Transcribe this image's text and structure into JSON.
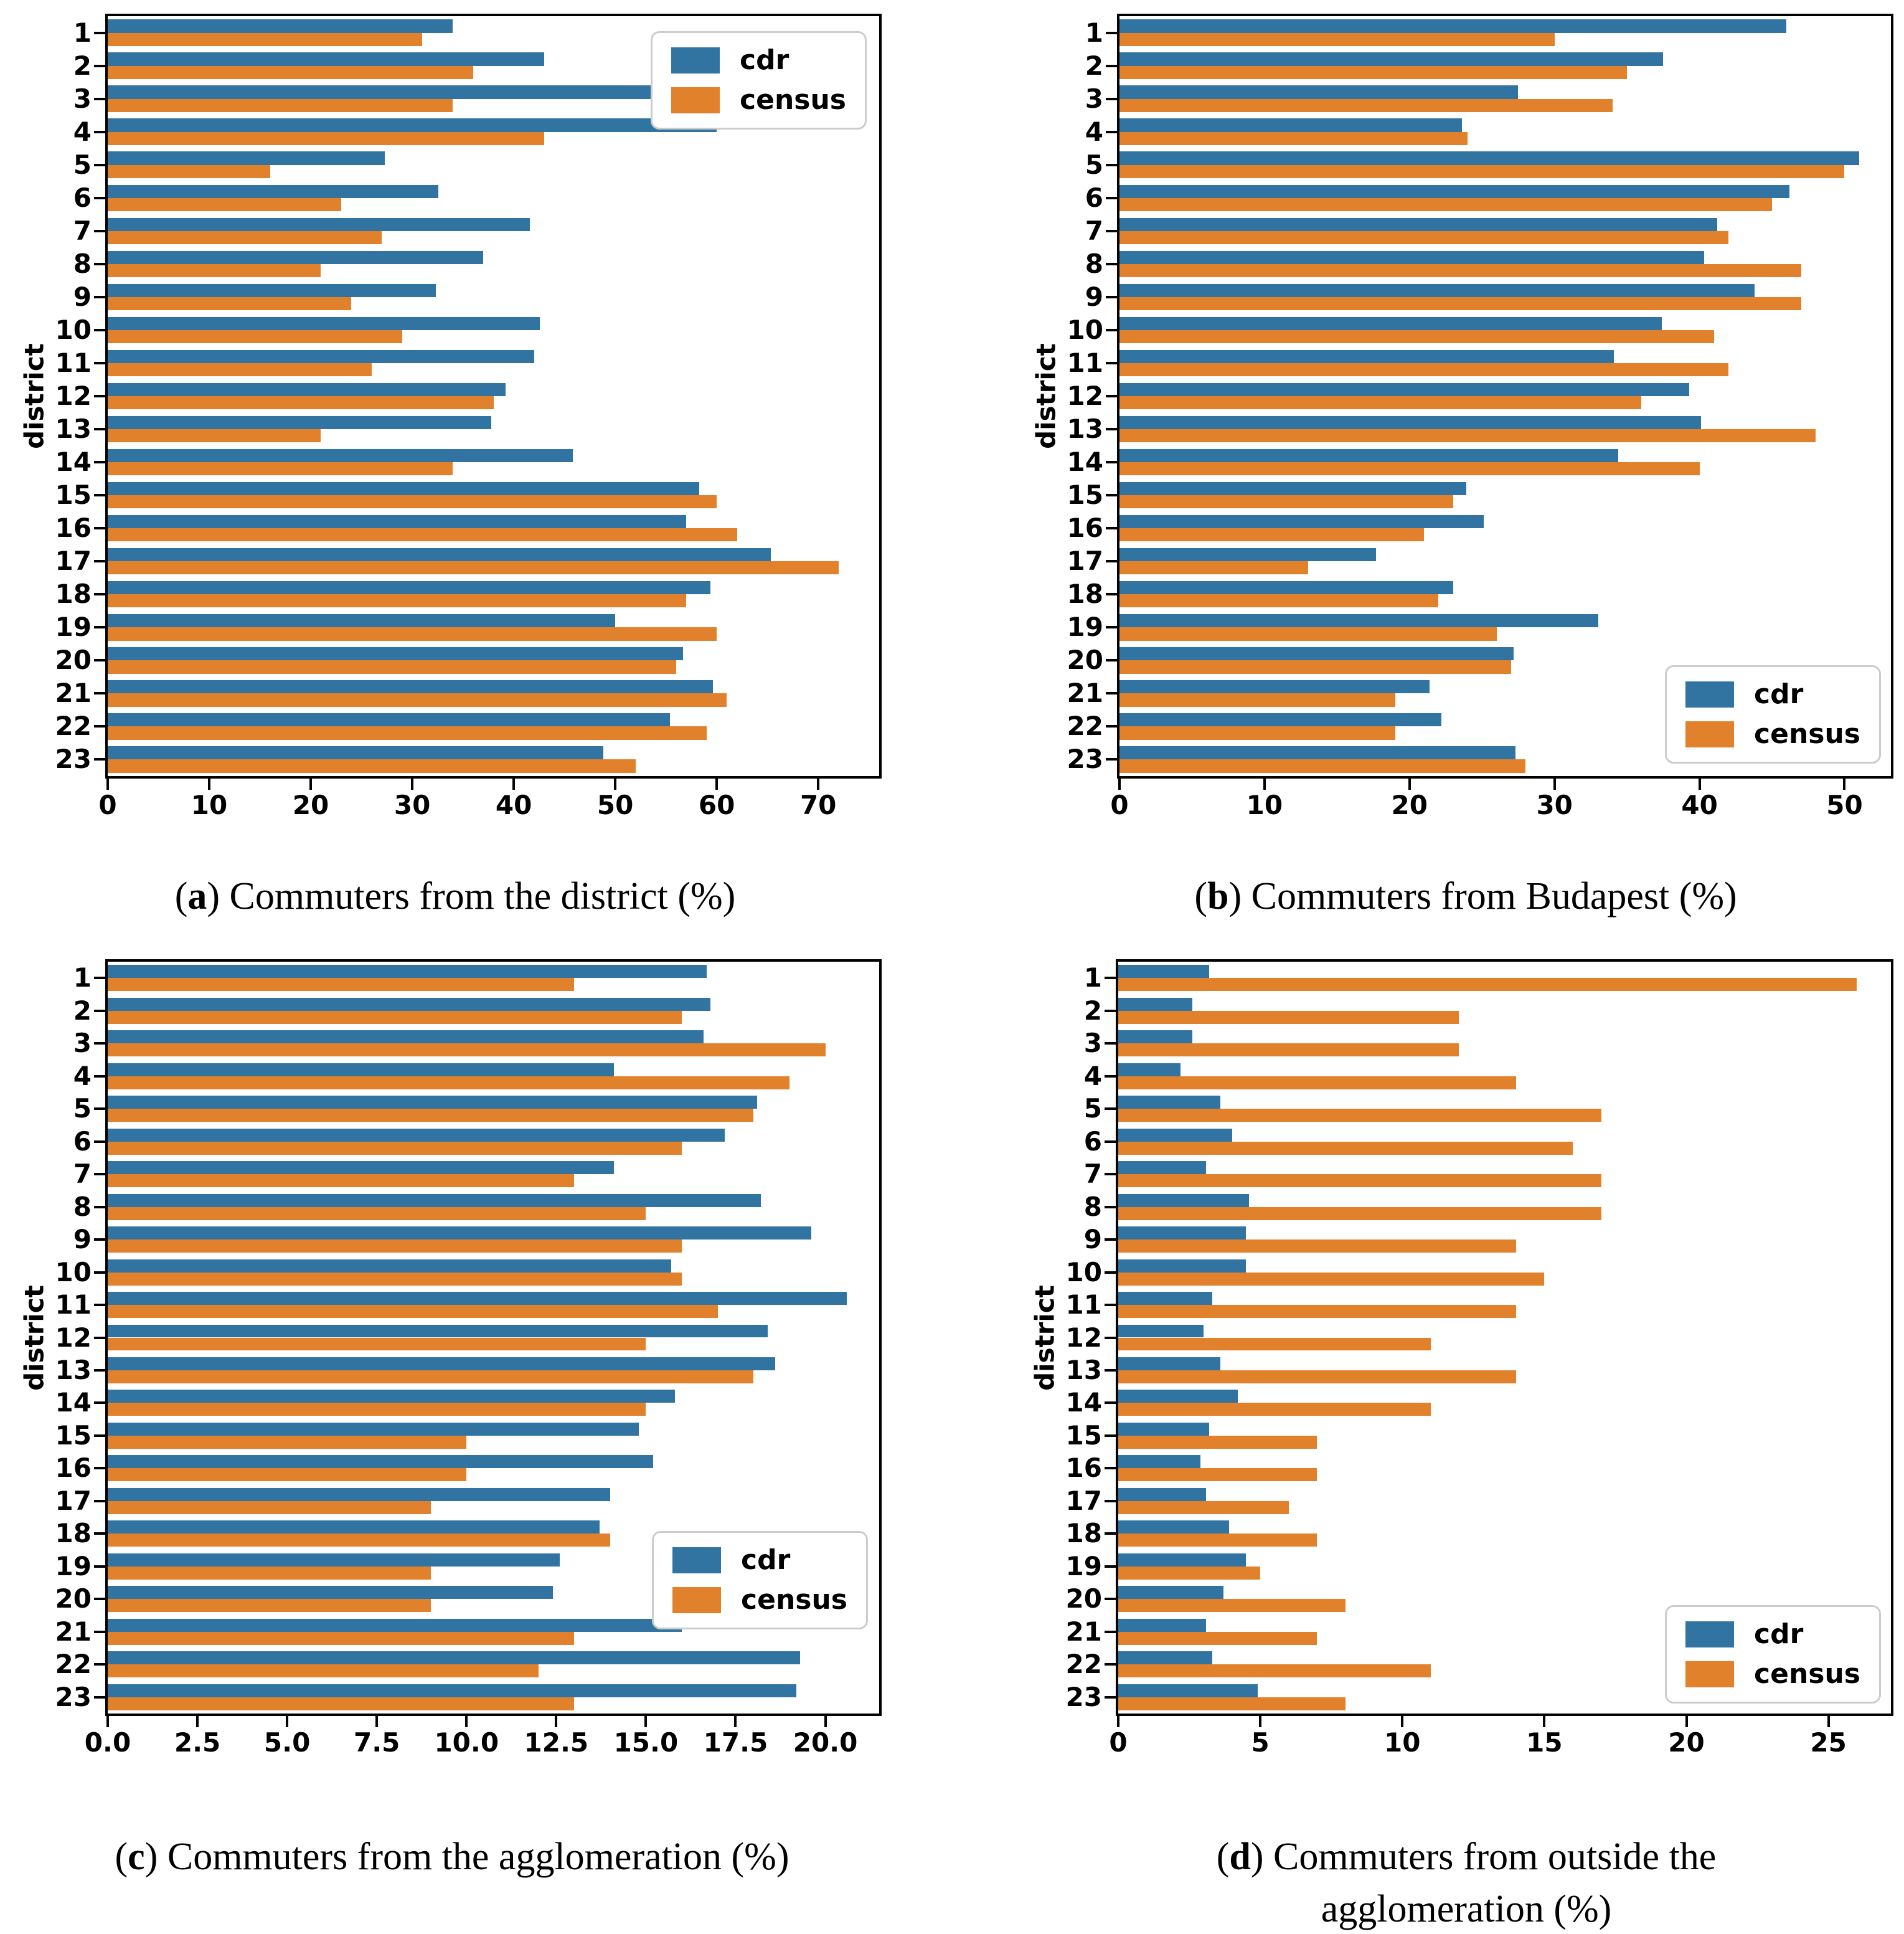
{
  "figure": {
    "background": "#ffffff",
    "ylabel": "district",
    "legend_labels": [
      "cdr",
      "census"
    ],
    "colors": {
      "cdr": "#3274a1",
      "census": "#e1812c",
      "spine": "#000000",
      "legend_border": "#cccccc"
    }
  },
  "chart_data": [
    {
      "id": "a",
      "type": "bar",
      "orientation": "horizontal",
      "caption": {
        "pre": "(",
        "letter": "a",
        "post": ") ",
        "text": "Commuters from the district (%)"
      },
      "ylabel": "district",
      "categories": [
        1,
        2,
        3,
        4,
        5,
        6,
        7,
        8,
        9,
        10,
        11,
        12,
        13,
        14,
        15,
        16,
        17,
        18,
        19,
        20,
        21,
        22,
        23
      ],
      "series": [
        {
          "name": "cdr",
          "color": "#3274a1",
          "values": [
            34,
            43,
            53.5,
            60,
            27.3,
            32.6,
            41.6,
            37,
            32.3,
            42.6,
            42,
            39.2,
            37.8,
            45.8,
            58.3,
            57,
            65.3,
            59.4,
            50,
            56.7,
            59.6,
            55.4,
            48.8
          ]
        },
        {
          "name": "census",
          "color": "#e1812c",
          "values": [
            31,
            36,
            34,
            43,
            16,
            23,
            27,
            21,
            24,
            29,
            26,
            38,
            21,
            34,
            60,
            62,
            72,
            57,
            60,
            56,
            61,
            59,
            52
          ]
        }
      ],
      "xticks": [
        "0",
        "10",
        "20",
        "30",
        "40",
        "50",
        "60",
        "70"
      ],
      "xlim": [
        0,
        76
      ],
      "grid": false,
      "legend_position": "top-right"
    },
    {
      "id": "b",
      "type": "bar",
      "orientation": "horizontal",
      "caption": {
        "pre": "(",
        "letter": "b",
        "post": ") ",
        "text": "Commuters from Budapest (%)"
      },
      "ylabel": "district",
      "categories": [
        1,
        2,
        3,
        4,
        5,
        6,
        7,
        8,
        9,
        10,
        11,
        12,
        13,
        14,
        15,
        16,
        17,
        18,
        19,
        20,
        21,
        22,
        23
      ],
      "series": [
        {
          "name": "cdr",
          "color": "#3274a1",
          "values": [
            46,
            37.5,
            27.5,
            23.6,
            51,
            46.2,
            41.2,
            40.3,
            43.8,
            37.4,
            34.1,
            39.3,
            40.1,
            34.4,
            23.9,
            25.1,
            17.7,
            23,
            33,
            27.2,
            21.4,
            22.2,
            27.3
          ]
        },
        {
          "name": "census",
          "color": "#e1812c",
          "values": [
            30,
            35,
            34,
            24,
            50,
            45,
            42,
            47,
            47,
            41,
            42,
            36,
            48,
            40,
            23,
            21,
            13,
            22,
            26,
            27,
            19,
            19,
            28
          ]
        }
      ],
      "xticks": [
        "0",
        "10",
        "20",
        "30",
        "40",
        "50"
      ],
      "xlim": [
        0,
        53.2
      ],
      "grid": false,
      "legend_position": "bottom-right"
    },
    {
      "id": "c",
      "type": "bar",
      "orientation": "horizontal",
      "caption": {
        "pre": "(",
        "letter": "c",
        "post": ") ",
        "text": "Commuters from the agglomeration (%)"
      },
      "ylabel": "district",
      "categories": [
        1,
        2,
        3,
        4,
        5,
        6,
        7,
        8,
        9,
        10,
        11,
        12,
        13,
        14,
        15,
        16,
        17,
        18,
        19,
        20,
        21,
        22,
        23
      ],
      "series": [
        {
          "name": "cdr",
          "color": "#3274a1",
          "values": [
            16.7,
            16.8,
            16.6,
            14.1,
            18.1,
            17.2,
            14.1,
            18.2,
            19.6,
            15.7,
            20.6,
            18.4,
            18.6,
            15.8,
            14.8,
            15.2,
            14,
            13.7,
            12.6,
            12.4,
            16,
            19.3,
            19.2
          ]
        },
        {
          "name": "census",
          "color": "#e1812c",
          "values": [
            13,
            16,
            20,
            19,
            18,
            16,
            13,
            15,
            16,
            16,
            17,
            15,
            18,
            15,
            10,
            10,
            9,
            14,
            9,
            9,
            13,
            12,
            13
          ]
        }
      ],
      "xticks": [
        "0.0",
        "2.5",
        "5.0",
        "7.5",
        "10.0",
        "12.5",
        "15.0",
        "17.5",
        "20.0"
      ],
      "xlim": [
        0,
        21.5
      ],
      "grid": false,
      "legend_position": "right-lower"
    },
    {
      "id": "d",
      "type": "bar",
      "orientation": "horizontal",
      "caption": {
        "pre": "(",
        "letter": "d",
        "post": ") ",
        "text": "Commuters from outside the agglomeration (%)"
      },
      "ylabel": "district",
      "categories": [
        1,
        2,
        3,
        4,
        5,
        6,
        7,
        8,
        9,
        10,
        11,
        12,
        13,
        14,
        15,
        16,
        17,
        18,
        19,
        20,
        21,
        22,
        23
      ],
      "series": [
        {
          "name": "cdr",
          "color": "#3274a1",
          "values": [
            3.2,
            2.6,
            2.6,
            2.2,
            3.6,
            4,
            3.1,
            4.6,
            4.5,
            4.5,
            3.3,
            3,
            3.6,
            4.2,
            3.2,
            2.9,
            3.1,
            3.9,
            4.5,
            3.7,
            3.1,
            3.3,
            4.9
          ]
        },
        {
          "name": "census",
          "color": "#e1812c",
          "values": [
            26,
            12,
            12,
            14,
            17,
            16,
            17,
            17,
            14,
            15,
            14,
            11,
            14,
            11,
            7,
            7,
            6,
            7,
            5,
            8,
            7,
            11,
            8
          ]
        }
      ],
      "xticks": [
        "0",
        "5",
        "10",
        "15",
        "20",
        "25"
      ],
      "xlim": [
        0,
        27.2
      ],
      "grid": false,
      "legend_position": "bottom-right"
    }
  ]
}
